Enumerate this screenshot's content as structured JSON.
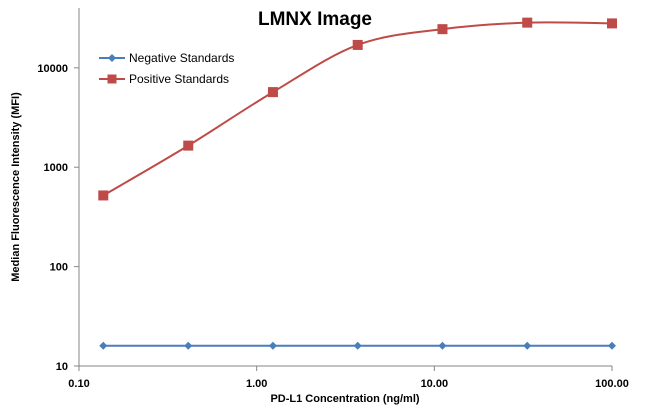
{
  "chart_data": {
    "type": "line",
    "title": "LMNX Image",
    "xlabel": "PD-L1 Concentration (ng/ml)",
    "ylabel": "Median Fluorescence Intensity (MFI)",
    "x_scale": "log",
    "y_scale": "log",
    "xlim": [
      0.1,
      100
    ],
    "ylim": [
      10,
      40000
    ],
    "x_ticks": [
      "0.10",
      "1.00",
      "10.00",
      "100.00"
    ],
    "y_ticks": [
      "10",
      "100",
      "1000",
      "10000"
    ],
    "grid": false,
    "legend_position": "top-left",
    "smooth": true,
    "x": [
      0.137,
      0.412,
      1.235,
      3.704,
      11.11,
      33.33,
      100
    ],
    "series": [
      {
        "name": "Negative Standards",
        "color": "#4a7ebb",
        "marker": "diamond",
        "values": [
          16,
          16,
          16,
          16,
          16,
          16,
          16
        ]
      },
      {
        "name": "Positive Standards",
        "color": "#be4b48",
        "marker": "square",
        "values": [
          520,
          1650,
          5700,
          17000,
          24500,
          28500,
          28000
        ]
      }
    ]
  }
}
